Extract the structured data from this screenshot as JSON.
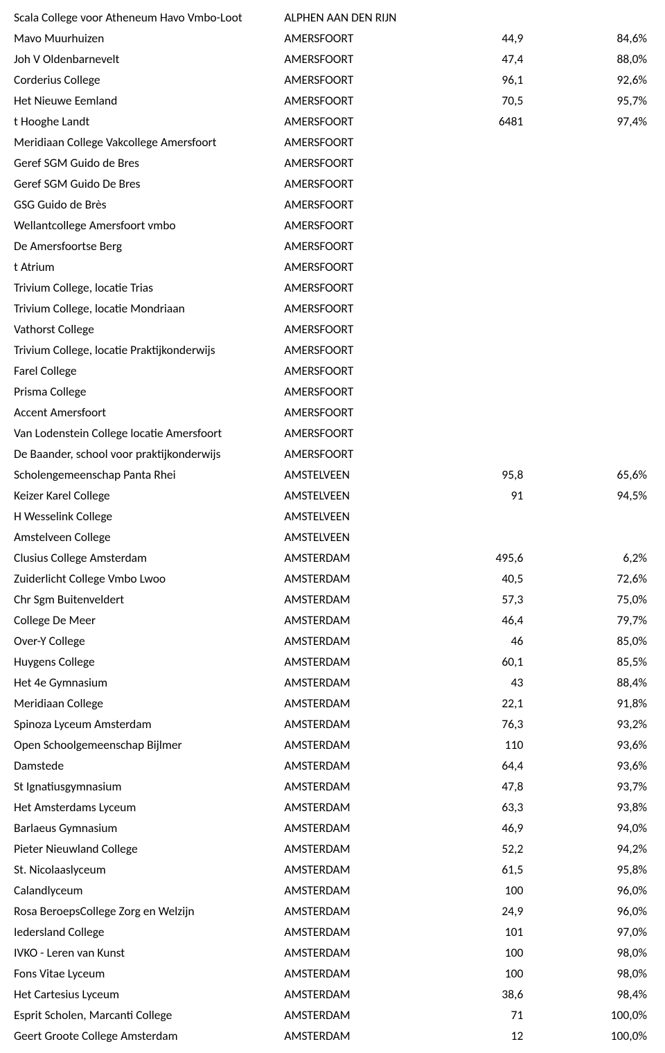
{
  "table": {
    "rows": [
      {
        "name": "Scala College voor Atheneum Havo Vmbo-Loot",
        "city": "ALPHEN AAN DEN RIJN",
        "v1": "",
        "v2": ""
      },
      {
        "name": "Mavo Muurhuizen",
        "city": "AMERSFOORT",
        "v1": "44,9",
        "v2": "84,6%"
      },
      {
        "name": "Joh V Oldenbarnevelt",
        "city": "AMERSFOORT",
        "v1": "47,4",
        "v2": "88,0%"
      },
      {
        "name": "Corderius College",
        "city": "AMERSFOORT",
        "v1": "96,1",
        "v2": "92,6%"
      },
      {
        "name": "Het Nieuwe Eemland",
        "city": "AMERSFOORT",
        "v1": "70,5",
        "v2": "95,7%"
      },
      {
        "name": "t Hooghe Landt",
        "city": "AMERSFOORT",
        "v1": "6481",
        "v2": "97,4%"
      },
      {
        "name": "Meridiaan College Vakcollege Amersfoort",
        "city": "AMERSFOORT",
        "v1": "",
        "v2": ""
      },
      {
        "name": "Geref SGM Guido de Bres",
        "city": "AMERSFOORT",
        "v1": "",
        "v2": ""
      },
      {
        "name": "Geref SGM Guido De Bres",
        "city": "AMERSFOORT",
        "v1": "",
        "v2": ""
      },
      {
        "name": "GSG Guido de Brès",
        "city": "AMERSFOORT",
        "v1": "",
        "v2": ""
      },
      {
        "name": "Wellantcollege Amersfoort vmbo",
        "city": "AMERSFOORT",
        "v1": "",
        "v2": ""
      },
      {
        "name": "De Amersfoortse Berg",
        "city": "AMERSFOORT",
        "v1": "",
        "v2": ""
      },
      {
        "name": "t Atrium",
        "city": "AMERSFOORT",
        "v1": "",
        "v2": ""
      },
      {
        "name": "Trivium College, locatie Trias",
        "city": "AMERSFOORT",
        "v1": "",
        "v2": ""
      },
      {
        "name": "Trivium College, locatie Mondriaan",
        "city": "AMERSFOORT",
        "v1": "",
        "v2": ""
      },
      {
        "name": "Vathorst College",
        "city": "AMERSFOORT",
        "v1": "",
        "v2": ""
      },
      {
        "name": "Trivium College, locatie Praktijkonderwijs",
        "city": "AMERSFOORT",
        "v1": "",
        "v2": ""
      },
      {
        "name": "Farel College",
        "city": "AMERSFOORT",
        "v1": "",
        "v2": ""
      },
      {
        "name": "Prisma College",
        "city": "AMERSFOORT",
        "v1": "",
        "v2": ""
      },
      {
        "name": "Accent Amersfoort",
        "city": "AMERSFOORT",
        "v1": "",
        "v2": ""
      },
      {
        "name": "Van Lodenstein College locatie Amersfoort",
        "city": "AMERSFOORT",
        "v1": "",
        "v2": ""
      },
      {
        "name": "De Baander, school voor praktijkonderwijs",
        "city": "AMERSFOORT",
        "v1": "",
        "v2": ""
      },
      {
        "name": "Scholengemeenschap Panta Rhei",
        "city": "AMSTELVEEN",
        "v1": "95,8",
        "v2": "65,6%"
      },
      {
        "name": "Keizer Karel College",
        "city": "AMSTELVEEN",
        "v1": "91",
        "v2": "94,5%"
      },
      {
        "name": "H Wesselink College",
        "city": "AMSTELVEEN",
        "v1": "",
        "v2": ""
      },
      {
        "name": "Amstelveen College",
        "city": "AMSTELVEEN",
        "v1": "",
        "v2": ""
      },
      {
        "name": "Clusius College Amsterdam",
        "city": "AMSTERDAM",
        "v1": "495,6",
        "v2": "6,2%"
      },
      {
        "name": "Zuiderlicht College Vmbo Lwoo",
        "city": "AMSTERDAM",
        "v1": "40,5",
        "v2": "72,6%"
      },
      {
        "name": "Chr Sgm Buitenveldert",
        "city": "AMSTERDAM",
        "v1": "57,3",
        "v2": "75,0%"
      },
      {
        "name": "College De Meer",
        "city": "AMSTERDAM",
        "v1": "46,4",
        "v2": "79,7%"
      },
      {
        "name": "Over-Y College",
        "city": "AMSTERDAM",
        "v1": "46",
        "v2": "85,0%"
      },
      {
        "name": "Huygens College",
        "city": "AMSTERDAM",
        "v1": "60,1",
        "v2": "85,5%"
      },
      {
        "name": "Het 4e Gymnasium",
        "city": "AMSTERDAM",
        "v1": "43",
        "v2": "88,4%"
      },
      {
        "name": "Meridiaan College",
        "city": "AMSTERDAM",
        "v1": "22,1",
        "v2": "91,8%"
      },
      {
        "name": "Spinoza Lyceum Amsterdam",
        "city": "AMSTERDAM",
        "v1": "76,3",
        "v2": "93,2%"
      },
      {
        "name": "Open Schoolgemeenschap Bijlmer",
        "city": "AMSTERDAM",
        "v1": "110",
        "v2": "93,6%"
      },
      {
        "name": "Damstede",
        "city": "AMSTERDAM",
        "v1": "64,4",
        "v2": "93,6%"
      },
      {
        "name": "St Ignatiusgymnasium",
        "city": "AMSTERDAM",
        "v1": "47,8",
        "v2": "93,7%"
      },
      {
        "name": "Het Amsterdams Lyceum",
        "city": "AMSTERDAM",
        "v1": "63,3",
        "v2": "93,8%"
      },
      {
        "name": "Barlaeus Gymnasium",
        "city": "AMSTERDAM",
        "v1": "46,9",
        "v2": "94,0%"
      },
      {
        "name": "Pieter Nieuwland College",
        "city": "AMSTERDAM",
        "v1": "52,2",
        "v2": "94,2%"
      },
      {
        "name": "St. Nicolaaslyceum",
        "city": "AMSTERDAM",
        "v1": "61,5",
        "v2": "95,8%"
      },
      {
        "name": "Calandlyceum",
        "city": "AMSTERDAM",
        "v1": "100",
        "v2": "96,0%"
      },
      {
        "name": "Rosa BeroepsCollege Zorg en Welzijn",
        "city": "AMSTERDAM",
        "v1": "24,9",
        "v2": "96,0%"
      },
      {
        "name": "Iedersland College",
        "city": "AMSTERDAM",
        "v1": "101",
        "v2": "97,0%"
      },
      {
        "name": "IVKO - Leren van Kunst",
        "city": "AMSTERDAM",
        "v1": "100",
        "v2": "98,0%"
      },
      {
        "name": "Fons Vitae Lyceum",
        "city": "AMSTERDAM",
        "v1": "100",
        "v2": "98,0%"
      },
      {
        "name": "Het Cartesius Lyceum",
        "city": "AMSTERDAM",
        "v1": "38,6",
        "v2": "98,4%"
      },
      {
        "name": "Esprit Scholen, Marcanti College",
        "city": "AMSTERDAM",
        "v1": "71",
        "v2": "100,0%"
      },
      {
        "name": "Geert Groote College Amsterdam",
        "city": "AMSTERDAM",
        "v1": "12",
        "v2": "100,0%"
      }
    ]
  }
}
